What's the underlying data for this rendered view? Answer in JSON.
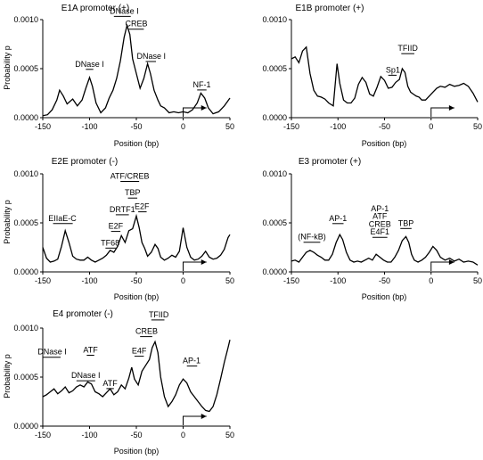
{
  "chart_data": [
    {
      "type": "line",
      "title": "E1A promoter (+)",
      "xlabel": "Position (bp)",
      "ylabel": "Probability p",
      "xlim": [
        -150,
        50
      ],
      "ylim": [
        0,
        0.001
      ],
      "xticks": [
        "-150",
        "-100",
        "-50",
        "0",
        "50"
      ],
      "yticks": [
        "0.0000",
        "0.0005",
        "0.0010"
      ],
      "x": [
        -150,
        -145,
        -140,
        -135,
        -132,
        -128,
        -124,
        -118,
        -113,
        -108,
        -104,
        -100,
        -97,
        -93,
        -88,
        -83,
        -79,
        -75,
        -71,
        -67,
        -63,
        -60,
        -57,
        -54,
        -50,
        -46,
        -42,
        -38,
        -35,
        -31,
        -27,
        -24,
        -20,
        -15,
        -10,
        -5,
        0,
        5,
        10,
        15,
        19,
        23,
        27,
        32,
        38,
        44,
        50
      ],
      "y": [
        2e-05,
        3e-05,
        8e-05,
        0.00018,
        0.00028,
        0.00022,
        0.00014,
        0.00019,
        0.00012,
        0.00018,
        0.0003,
        0.00041,
        0.00032,
        0.00015,
        5e-05,
        0.0001,
        0.0002,
        0.00028,
        0.0004,
        0.00058,
        0.00082,
        0.00094,
        0.00085,
        0.0006,
        0.00045,
        0.0003,
        0.0004,
        0.00055,
        0.00045,
        0.00028,
        0.00018,
        0.00012,
        0.0001,
        5e-05,
        6e-05,
        5e-05,
        6e-05,
        5e-05,
        8e-05,
        0.00015,
        0.00025,
        0.0002,
        0.0001,
        4e-05,
        6e-05,
        0.00012,
        0.0002
      ],
      "annotations": [
        {
          "text": "DNase I",
          "x": -100,
          "y": 0.00052,
          "ul": [
            -104,
            -96
          ]
        },
        {
          "text": "DNase I",
          "x": -63,
          "y": 0.00106,
          "ul": [
            -74,
            -56
          ]
        },
        {
          "text": "CREB",
          "x": -50,
          "y": 0.00093,
          "ul": [
            -58,
            -42
          ]
        },
        {
          "text": "DNase I",
          "x": -34,
          "y": 0.0006,
          "ul": [
            -40,
            -29
          ]
        },
        {
          "text": "NF-1",
          "x": 20,
          "y": 0.00031,
          "ul": [
            15,
            25
          ]
        }
      ],
      "tss": {
        "x": 0,
        "dir": 1
      }
    },
    {
      "type": "line",
      "title": "E1B promoter (+)",
      "xlabel": "Position (bp)",
      "ylabel": "",
      "xlim": [
        -150,
        50
      ],
      "ylim": [
        0,
        0.001
      ],
      "xticks": [
        "-150",
        "-100",
        "-50",
        "0",
        "50"
      ],
      "yticks": [
        "0.0000",
        "0.0005",
        "0.0010"
      ],
      "x": [
        -150,
        -146,
        -142,
        -138,
        -134,
        -130,
        -126,
        -122,
        -118,
        -114,
        -110,
        -105,
        -101,
        -98,
        -94,
        -90,
        -86,
        -82,
        -78,
        -74,
        -70,
        -66,
        -62,
        -58,
        -54,
        -50,
        -46,
        -42,
        -38,
        -34,
        -31,
        -28,
        -25,
        -22,
        -19,
        -16,
        -13,
        -10,
        -6,
        -2,
        2,
        6,
        10,
        15,
        20,
        25,
        30,
        35,
        40,
        45,
        50
      ],
      "y": [
        0.0006,
        0.00062,
        0.00056,
        0.00068,
        0.00072,
        0.00045,
        0.00028,
        0.00022,
        0.00021,
        0.00019,
        0.00015,
        0.00012,
        0.00055,
        0.00035,
        0.00018,
        0.00015,
        0.00015,
        0.0002,
        0.00034,
        0.00041,
        0.00036,
        0.00024,
        0.00022,
        0.00031,
        0.00042,
        0.00038,
        0.0003,
        0.00031,
        0.00036,
        0.00039,
        0.0005,
        0.00046,
        0.00032,
        0.00026,
        0.00024,
        0.00022,
        0.00021,
        0.00018,
        0.00018,
        0.00022,
        0.00026,
        0.0003,
        0.00032,
        0.00031,
        0.00034,
        0.00032,
        0.00033,
        0.00035,
        0.00032,
        0.00025,
        0.00016
      ],
      "annotations": [
        {
          "text": "TFIID",
          "x": -25,
          "y": 0.00068,
          "ul": [
            -32,
            -18
          ]
        },
        {
          "text": "Sp1",
          "x": -41,
          "y": 0.00046,
          "ul": [
            -46,
            -37
          ]
        }
      ],
      "tss": {
        "x": 0,
        "dir": 1
      }
    },
    {
      "type": "line",
      "title": "E2E promoter (-)",
      "xlabel": "Position (bp)",
      "ylabel": "Probability p",
      "xlim": [
        -150,
        50
      ],
      "ylim": [
        0,
        0.001
      ],
      "xticks": [
        "-150",
        "-100",
        "-50",
        "0",
        "50"
      ],
      "yticks": [
        "0.0000",
        "0.0005",
        "0.0010"
      ],
      "x": [
        -150,
        -146,
        -142,
        -138,
        -134,
        -130,
        -126,
        -122,
        -118,
        -114,
        -110,
        -106,
        -102,
        -98,
        -94,
        -90,
        -86,
        -82,
        -78,
        -74,
        -70,
        -66,
        -62,
        -58,
        -54,
        -50,
        -47,
        -44,
        -41,
        -38,
        -34,
        -30,
        -27,
        -24,
        -20,
        -16,
        -12,
        -8,
        -4,
        0,
        4,
        8,
        12,
        16,
        20,
        24,
        28,
        32,
        36,
        40,
        44,
        48,
        50
      ],
      "y": [
        0.00025,
        0.00014,
        0.0001,
        0.00011,
        0.00013,
        0.00026,
        0.00042,
        0.0003,
        0.00016,
        0.00013,
        0.00012,
        0.00012,
        0.00015,
        0.00012,
        0.0001,
        0.00012,
        0.00014,
        0.00017,
        0.00022,
        0.0002,
        0.00026,
        0.00037,
        0.0003,
        0.00042,
        0.00044,
        0.00057,
        0.00045,
        0.0003,
        0.00024,
        0.00016,
        0.0002,
        0.00028,
        0.00024,
        0.00015,
        0.00012,
        0.00014,
        0.00017,
        0.00015,
        0.00021,
        0.00045,
        0.00025,
        0.00015,
        0.00012,
        0.00013,
        0.00016,
        0.00021,
        0.00015,
        0.00013,
        0.00014,
        0.00017,
        0.00023,
        0.00035,
        0.00038
      ],
      "annotations": [
        {
          "text": "EIIaE-C",
          "x": -129,
          "y": 0.00052,
          "ul": [
            -139,
            -118
          ]
        },
        {
          "text": "ATF/CREB",
          "x": -57,
          "y": 0.00095,
          "ul": [
            -67,
            -47
          ]
        },
        {
          "text": "TBP",
          "x": -54,
          "y": 0.00078,
          "ul": [
            -59,
            -49
          ]
        },
        {
          "text": "DRTF1",
          "x": -65,
          "y": 0.00061,
          "ul": [
            -72,
            -58
          ]
        },
        {
          "text": "E2F",
          "x": -44,
          "y": 0.00064,
          "ul": [
            -48,
            -39
          ]
        },
        {
          "text": "E2F",
          "x": -72,
          "y": 0.00044,
          "ul": [
            -77,
            -67
          ]
        },
        {
          "text": "TF68",
          "x": -78,
          "y": 0.00027,
          "ul": [
            -83,
            -72
          ]
        }
      ],
      "tss": {
        "x": 0,
        "dir": 1
      }
    },
    {
      "type": "line",
      "title": "E3 promoter (+)",
      "xlabel": "Position (bp)",
      "ylabel": "",
      "xlim": [
        -150,
        50
      ],
      "ylim": [
        0,
        0.001
      ],
      "xticks": [
        "-150",
        "-100",
        "-50",
        "0",
        "50"
      ],
      "yticks": [
        "0.0000",
        "0.0005",
        "0.0010"
      ],
      "x": [
        -150,
        -146,
        -142,
        -138,
        -134,
        -130,
        -126,
        -122,
        -118,
        -114,
        -110,
        -106,
        -102,
        -98,
        -95,
        -91,
        -87,
        -83,
        -79,
        -75,
        -71,
        -67,
        -63,
        -59,
        -55,
        -51,
        -47,
        -43,
        -39,
        -35,
        -31,
        -27,
        -24,
        -21,
        -18,
        -14,
        -10,
        -6,
        -2,
        2,
        6,
        10,
        15,
        20,
        25,
        30,
        35,
        40,
        45,
        50
      ],
      "y": [
        0.00011,
        0.00012,
        0.0001,
        0.00015,
        0.0002,
        0.00022,
        0.0002,
        0.00017,
        0.00015,
        0.00012,
        0.00012,
        0.00018,
        0.0003,
        0.00038,
        0.00033,
        0.0002,
        0.00012,
        0.0001,
        0.00011,
        0.0001,
        0.00012,
        0.00014,
        0.00012,
        0.00018,
        0.00015,
        0.00012,
        0.0001,
        0.0001,
        0.00015,
        0.00022,
        0.00032,
        0.00036,
        0.0003,
        0.00018,
        0.00012,
        0.0001,
        0.00012,
        0.00015,
        0.0002,
        0.00026,
        0.00022,
        0.00015,
        0.00012,
        0.00014,
        0.00011,
        0.00013,
        0.0001,
        0.00011,
        0.0001,
        7e-05
      ],
      "annotations": [
        {
          "text": "(NF-kB)",
          "x": -128,
          "y": 0.00033,
          "ul": [
            -137,
            -119
          ]
        },
        {
          "text": "AP-1",
          "x": -100,
          "y": 0.00052,
          "ul": [
            -106,
            -94
          ]
        },
        {
          "text": "AP-1",
          "x": -55,
          "y": 0.00062,
          "ul": null
        },
        {
          "text": "ATF",
          "x": -55,
          "y": 0.00054,
          "ul": null
        },
        {
          "text": "CREB",
          "x": -55,
          "y": 0.00046,
          "ul": null
        },
        {
          "text": "E4F1",
          "x": -55,
          "y": 0.00038,
          "ul": [
            -63,
            -47
          ]
        },
        {
          "text": "TBP",
          "x": -27,
          "y": 0.00047,
          "ul": [
            -33,
            -21
          ]
        }
      ],
      "tss": {
        "x": 0,
        "dir": 1
      }
    },
    {
      "type": "line",
      "title": "E4 promoter (-)",
      "xlabel": "Position (bp)",
      "ylabel": "Probability p",
      "xlim": [
        -150,
        50
      ],
      "ylim": [
        0,
        0.001
      ],
      "xticks": [
        "-150",
        "-100",
        "-50",
        "0",
        "50"
      ],
      "yticks": [
        "0.0000",
        "0.0005",
        "0.0010"
      ],
      "x": [
        -150,
        -146,
        -142,
        -138,
        -134,
        -130,
        -126,
        -122,
        -118,
        -114,
        -110,
        -106,
        -102,
        -98,
        -94,
        -90,
        -86,
        -82,
        -78,
        -74,
        -70,
        -66,
        -62,
        -58,
        -55,
        -52,
        -48,
        -44,
        -40,
        -36,
        -33,
        -30,
        -27,
        -24,
        -20,
        -16,
        -12,
        -8,
        -4,
        0,
        4,
        8,
        12,
        16,
        20,
        24,
        28,
        32,
        36,
        40,
        44,
        48,
        50
      ],
      "y": [
        0.0003,
        0.00032,
        0.00035,
        0.00038,
        0.00033,
        0.00036,
        0.0004,
        0.00034,
        0.00036,
        0.0004,
        0.00042,
        0.0004,
        0.00045,
        0.00043,
        0.00035,
        0.00033,
        0.0003,
        0.00034,
        0.00038,
        0.00032,
        0.00035,
        0.00042,
        0.00038,
        0.00049,
        0.0006,
        0.00048,
        0.00042,
        0.00056,
        0.00062,
        0.00068,
        0.0008,
        0.00086,
        0.00075,
        0.0005,
        0.0003,
        0.0002,
        0.00025,
        0.00032,
        0.00042,
        0.00048,
        0.00044,
        0.00035,
        0.0003,
        0.00025,
        0.0002,
        0.00016,
        0.00015,
        0.0002,
        0.00032,
        0.00048,
        0.00065,
        0.0008,
        0.00088
      ],
      "annotations": [
        {
          "text": "DNase I",
          "x": -140,
          "y": 0.00073,
          "ul": [
            -150,
            -131
          ]
        },
        {
          "text": "ATF",
          "x": -99,
          "y": 0.00075,
          "ul": [
            -103,
            -95
          ]
        },
        {
          "text": "DNase I",
          "x": -104,
          "y": 0.00049,
          "ul": [
            -114,
            -94
          ]
        },
        {
          "text": "ATF",
          "x": -78,
          "y": 0.00041,
          "ul": [
            -82,
            -74
          ]
        },
        {
          "text": "E4F",
          "x": -47,
          "y": 0.00074,
          "ul": [
            -52,
            -42
          ]
        },
        {
          "text": "CREB",
          "x": -39,
          "y": 0.00094,
          "ul": [
            -46,
            -33
          ]
        },
        {
          "text": "TFIID",
          "x": -26,
          "y": 0.00111,
          "ul": [
            -34,
            -20
          ]
        },
        {
          "text": "AP-1",
          "x": 9,
          "y": 0.00064,
          "ul": [
            4,
            15
          ]
        }
      ],
      "tss": {
        "x": 0,
        "dir": 1
      }
    }
  ]
}
